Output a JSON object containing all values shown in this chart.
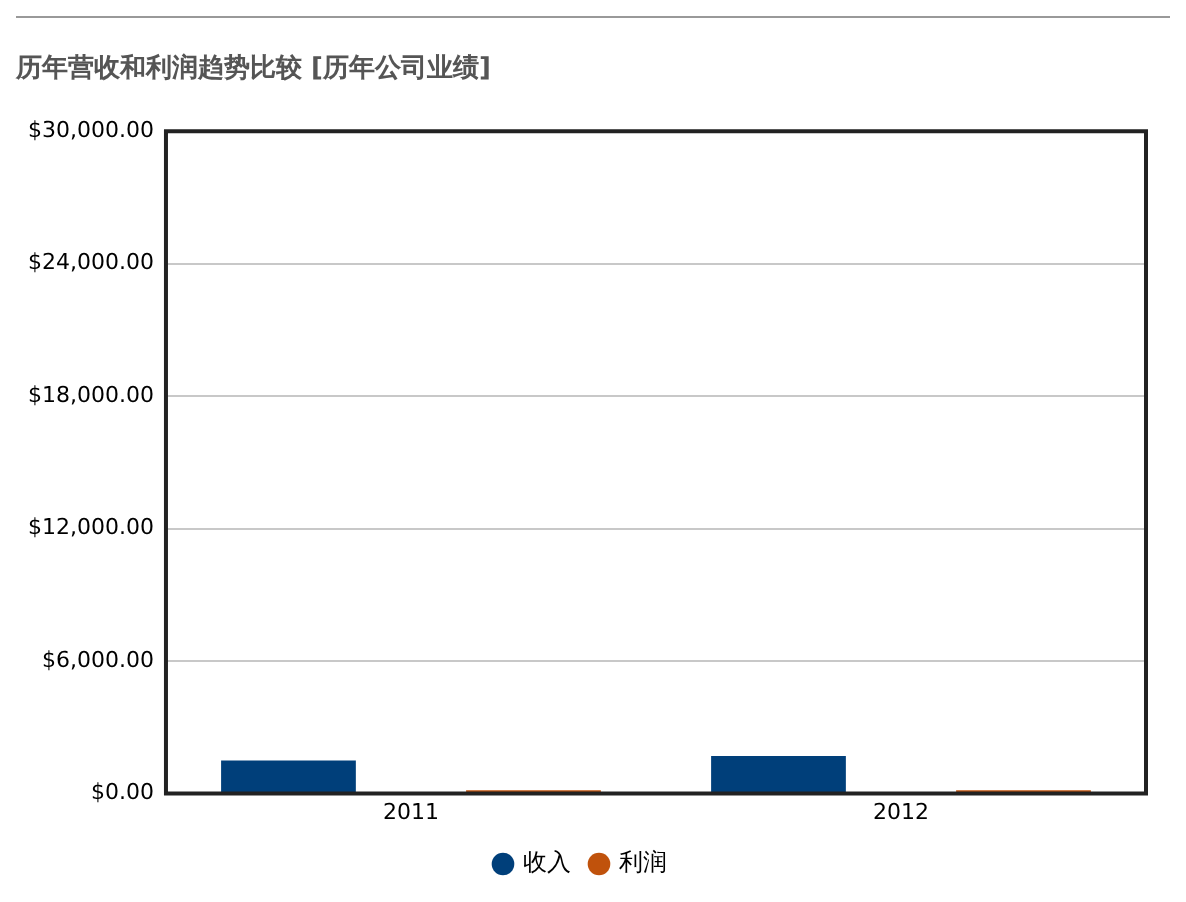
{
  "chart_data": {
    "type": "bar",
    "title": "历年营收和利润趋势比较 [历年公司业绩]",
    "categories": [
      "2011",
      "2012"
    ],
    "series": [
      {
        "name": "收入",
        "color": "#003f7a",
        "values": [
          1500,
          1700
        ]
      },
      {
        "name": "利润",
        "color": "#c0520c",
        "values": [
          150,
          150
        ]
      }
    ],
    "ylim": [
      0,
      30000
    ],
    "yticks": [
      {
        "value": 0,
        "label": "$0.00"
      },
      {
        "value": 6000,
        "label": "$6,000.00"
      },
      {
        "value": 12000,
        "label": "$12,000.00"
      },
      {
        "value": 18000,
        "label": "$18,000.00"
      },
      {
        "value": 24000,
        "label": "$24,000.00"
      },
      {
        "value": 30000,
        "label": "$30,000.00"
      }
    ],
    "grid": "y",
    "legend": "bottom"
  }
}
